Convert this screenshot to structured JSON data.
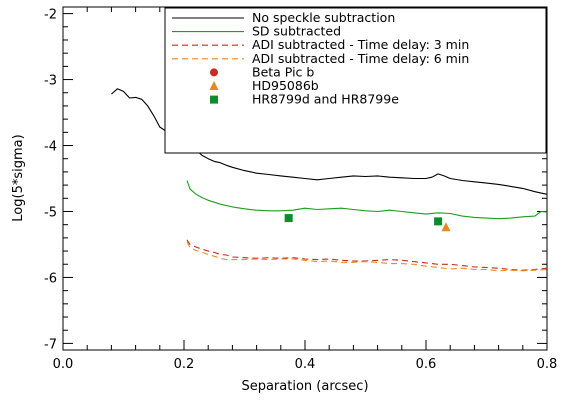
{
  "chart_data": {
    "type": "line",
    "title": "",
    "xlabel": "Separation (arcsec)",
    "ylabel": "Log(5*sigma)",
    "xlim": [
      0.0,
      0.8
    ],
    "ylim": [
      -7.1,
      -1.9
    ],
    "xticks": [
      0.0,
      0.2,
      0.4,
      0.6,
      0.8
    ],
    "xtick_labels": [
      "0.0",
      "0.2",
      "0.4",
      "0.6",
      "0.8"
    ],
    "yticks": [
      -7,
      -6,
      -5,
      -4,
      -3,
      -2
    ],
    "ytick_labels": [
      "-7",
      "-6",
      "-5",
      "-4",
      "-3",
      "-2"
    ],
    "grid": false,
    "legend_position": "top-right",
    "series": [
      {
        "name": "No speckle subtraction",
        "color": "#000000",
        "dash": "solid",
        "x": [
          0.08,
          0.09,
          0.1,
          0.11,
          0.12,
          0.13,
          0.14,
          0.15,
          0.16,
          0.17,
          0.18,
          0.19,
          0.2,
          0.21,
          0.22,
          0.23,
          0.24,
          0.25,
          0.26,
          0.27,
          0.28,
          0.3,
          0.32,
          0.34,
          0.36,
          0.38,
          0.4,
          0.42,
          0.44,
          0.46,
          0.48,
          0.5,
          0.52,
          0.54,
          0.56,
          0.58,
          0.6,
          0.61,
          0.62,
          0.63,
          0.64,
          0.66,
          0.68,
          0.7,
          0.72,
          0.74,
          0.76,
          0.78,
          0.8
        ],
        "y": [
          -3.22,
          -3.14,
          -3.18,
          -3.28,
          -3.27,
          -3.3,
          -3.4,
          -3.55,
          -3.72,
          -3.78,
          -3.82,
          -3.88,
          -3.96,
          -4.02,
          -4.07,
          -4.15,
          -4.2,
          -4.24,
          -4.26,
          -4.3,
          -4.33,
          -4.38,
          -4.42,
          -4.44,
          -4.46,
          -4.48,
          -4.5,
          -4.52,
          -4.5,
          -4.48,
          -4.46,
          -4.47,
          -4.46,
          -4.48,
          -4.49,
          -4.5,
          -4.5,
          -4.48,
          -4.43,
          -4.46,
          -4.5,
          -4.53,
          -4.55,
          -4.57,
          -4.59,
          -4.62,
          -4.65,
          -4.7,
          -4.74
        ]
      },
      {
        "name": "SD subtracted",
        "color": "#1c9e1c",
        "dash": "solid",
        "x": [
          0.205,
          0.21,
          0.22,
          0.23,
          0.24,
          0.25,
          0.26,
          0.28,
          0.3,
          0.32,
          0.34,
          0.36,
          0.38,
          0.4,
          0.42,
          0.44,
          0.46,
          0.48,
          0.5,
          0.52,
          0.54,
          0.56,
          0.58,
          0.6,
          0.62,
          0.64,
          0.66,
          0.68,
          0.7,
          0.72,
          0.74,
          0.76,
          0.78,
          0.79,
          0.8
        ],
        "y": [
          -4.53,
          -4.66,
          -4.74,
          -4.79,
          -4.83,
          -4.86,
          -4.89,
          -4.93,
          -4.96,
          -4.98,
          -4.99,
          -4.99,
          -4.98,
          -4.95,
          -4.97,
          -4.96,
          -4.95,
          -4.97,
          -4.99,
          -5.0,
          -4.98,
          -5.0,
          -5.02,
          -5.04,
          -5.02,
          -5.03,
          -5.07,
          -5.09,
          -5.1,
          -5.11,
          -5.1,
          -5.08,
          -5.07,
          -5.0,
          -5.01
        ]
      },
      {
        "name": "ADI subtracted - Time delay: 3 min",
        "color": "#c92b1f",
        "dash": "dashed",
        "x": [
          0.205,
          0.21,
          0.22,
          0.23,
          0.24,
          0.25,
          0.26,
          0.27,
          0.28,
          0.3,
          0.32,
          0.34,
          0.36,
          0.38,
          0.4,
          0.42,
          0.44,
          0.46,
          0.48,
          0.5,
          0.52,
          0.54,
          0.56,
          0.58,
          0.6,
          0.62,
          0.64,
          0.66,
          0.68,
          0.7,
          0.72,
          0.74,
          0.76,
          0.78,
          0.8
        ],
        "y": [
          -5.43,
          -5.5,
          -5.54,
          -5.57,
          -5.6,
          -5.62,
          -5.65,
          -5.66,
          -5.69,
          -5.7,
          -5.71,
          -5.7,
          -5.71,
          -5.7,
          -5.72,
          -5.73,
          -5.72,
          -5.74,
          -5.75,
          -5.75,
          -5.74,
          -5.73,
          -5.74,
          -5.76,
          -5.78,
          -5.8,
          -5.8,
          -5.82,
          -5.84,
          -5.85,
          -5.86,
          -5.88,
          -5.89,
          -5.88,
          -5.86
        ]
      },
      {
        "name": "ADI subtracted - Time delay: 6 min",
        "color": "#f08a22",
        "dash": "dashed",
        "x": [
          0.205,
          0.21,
          0.22,
          0.23,
          0.24,
          0.25,
          0.26,
          0.27,
          0.28,
          0.3,
          0.32,
          0.34,
          0.36,
          0.38,
          0.4,
          0.42,
          0.44,
          0.46,
          0.48,
          0.5,
          0.52,
          0.54,
          0.56,
          0.58,
          0.6,
          0.62,
          0.64,
          0.66,
          0.68,
          0.7,
          0.72,
          0.74,
          0.76,
          0.78,
          0.8
        ],
        "y": [
          -5.46,
          -5.55,
          -5.59,
          -5.62,
          -5.65,
          -5.68,
          -5.71,
          -5.73,
          -5.73,
          -5.73,
          -5.72,
          -5.73,
          -5.72,
          -5.72,
          -5.74,
          -5.76,
          -5.75,
          -5.77,
          -5.77,
          -5.76,
          -5.77,
          -5.79,
          -5.79,
          -5.8,
          -5.83,
          -5.85,
          -5.87,
          -5.86,
          -5.88,
          -5.88,
          -5.9,
          -5.89,
          -5.9,
          -5.89,
          -5.88
        ]
      }
    ],
    "points": [
      {
        "name": "Beta Pic b",
        "marker": "circle",
        "color": "#c92b1f",
        "x": [
          0.457
        ],
        "y": [
          -4.04
        ]
      },
      {
        "name": "HD95086b",
        "marker": "triangle",
        "color": "#e68a1f",
        "x": [
          0.633
        ],
        "y": [
          -5.24
        ]
      },
      {
        "name": "HR8799d and HR8799e",
        "marker": "square",
        "color": "#0f8a2d",
        "x": [
          0.373,
          0.62
        ],
        "y": [
          -5.1,
          -5.15
        ]
      }
    ]
  }
}
